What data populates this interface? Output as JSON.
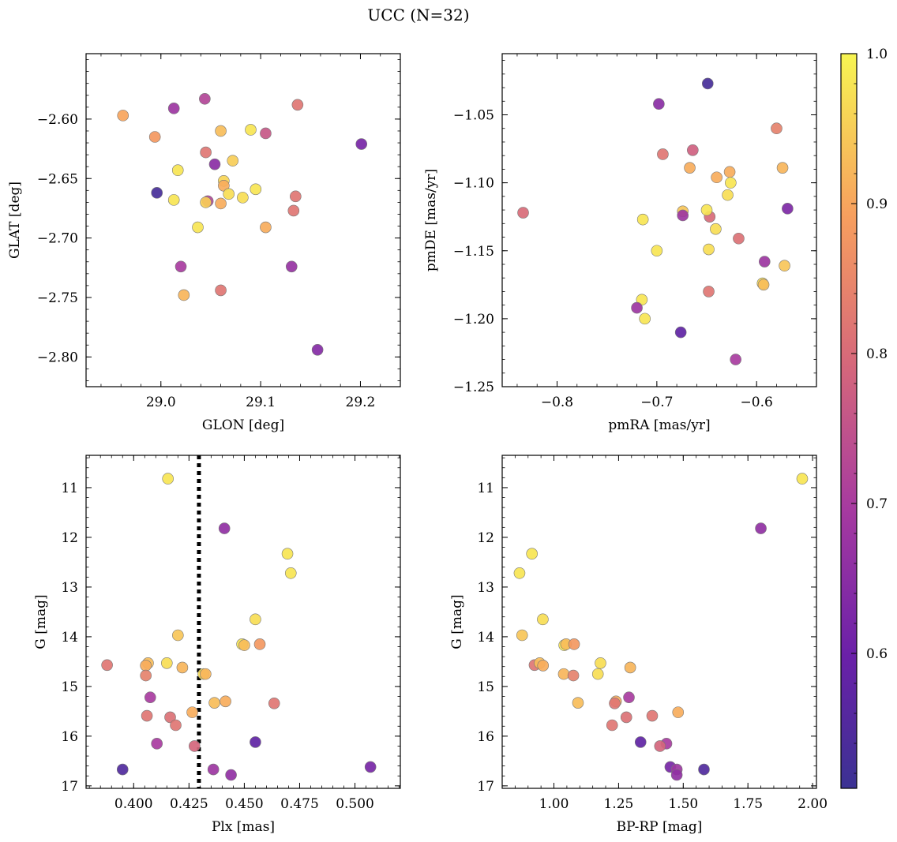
{
  "title": "UCC (N=32)",
  "colorbar": {
    "min": 0.51,
    "max": 1.0,
    "ticks": [
      0.6,
      0.7,
      0.8,
      0.9,
      1.0
    ],
    "tick_labels": [
      "0.6",
      "0.7",
      "0.8",
      "0.9",
      "1.0"
    ],
    "colormap": "plasma"
  },
  "chart_data": [
    {
      "type": "scatter",
      "xlabel": "GLON [deg]",
      "ylabel": "GLAT [deg]",
      "xlim": [
        28.925,
        29.24
      ],
      "ylim": [
        -2.825,
        -2.545
      ],
      "y_inverted": false,
      "xticks": [
        29.0,
        29.1,
        29.2
      ],
      "xtick_labels": [
        "29.0",
        "29.1",
        "29.2"
      ],
      "yticks": [
        -2.6,
        -2.65,
        -2.7,
        -2.75,
        -2.8
      ],
      "ytick_labels": [
        "−2.60",
        "−2.65",
        "−2.70",
        "−2.75",
        "−2.80"
      ],
      "points": [
        {
          "x": 28.962,
          "y": -2.597,
          "c": 0.9
        },
        {
          "x": 29.013,
          "y": -2.591,
          "c": 0.68
        },
        {
          "x": 29.044,
          "y": -2.583,
          "c": 0.72
        },
        {
          "x": 29.137,
          "y": -2.588,
          "c": 0.82
        },
        {
          "x": 28.994,
          "y": -2.615,
          "c": 0.88
        },
        {
          "x": 29.06,
          "y": -2.61,
          "c": 0.93
        },
        {
          "x": 29.09,
          "y": -2.609,
          "c": 0.98
        },
        {
          "x": 29.105,
          "y": -2.612,
          "c": 0.76
        },
        {
          "x": 29.201,
          "y": -2.621,
          "c": 0.62
        },
        {
          "x": 29.045,
          "y": -2.628,
          "c": 0.82
        },
        {
          "x": 29.072,
          "y": -2.635,
          "c": 0.95
        },
        {
          "x": 29.054,
          "y": -2.638,
          "c": 0.65
        },
        {
          "x": 29.017,
          "y": -2.643,
          "c": 0.98
        },
        {
          "x": 29.063,
          "y": -2.652,
          "c": 0.96
        },
        {
          "x": 29.063,
          "y": -2.656,
          "c": 0.91
        },
        {
          "x": 29.095,
          "y": -2.659,
          "c": 0.98
        },
        {
          "x": 28.996,
          "y": -2.662,
          "c": 0.53
        },
        {
          "x": 29.068,
          "y": -2.663,
          "c": 0.97
        },
        {
          "x": 29.082,
          "y": -2.666,
          "c": 0.97
        },
        {
          "x": 29.135,
          "y": -2.665,
          "c": 0.82
        },
        {
          "x": 29.013,
          "y": -2.668,
          "c": 0.98
        },
        {
          "x": 29.047,
          "y": -2.669,
          "c": 0.72
        },
        {
          "x": 29.045,
          "y": -2.67,
          "c": 0.95
        },
        {
          "x": 29.06,
          "y": -2.671,
          "c": 0.91
        },
        {
          "x": 29.133,
          "y": -2.677,
          "c": 0.82
        },
        {
          "x": 29.037,
          "y": -2.691,
          "c": 0.98
        },
        {
          "x": 29.105,
          "y": -2.691,
          "c": 0.91
        },
        {
          "x": 29.02,
          "y": -2.724,
          "c": 0.7
        },
        {
          "x": 29.131,
          "y": -2.724,
          "c": 0.67
        },
        {
          "x": 29.023,
          "y": -2.748,
          "c": 0.92
        },
        {
          "x": 29.06,
          "y": -2.744,
          "c": 0.82
        },
        {
          "x": 29.157,
          "y": -2.794,
          "c": 0.64
        }
      ]
    },
    {
      "type": "scatter",
      "xlabel": "pmRA [mas/yr]",
      "ylabel": "pmDE [mas/yr]",
      "xlim": [
        -0.855,
        -0.54
      ],
      "ylim": [
        -1.25,
        -1.005
      ],
      "y_inverted": false,
      "xticks": [
        -0.8,
        -0.7,
        -0.6
      ],
      "xtick_labels": [
        "−0.8",
        "−0.7",
        "−0.6"
      ],
      "yticks": [
        -1.05,
        -1.1,
        -1.15,
        -1.2,
        -1.25
      ],
      "ytick_labels": [
        "−1.05",
        "−1.10",
        "−1.15",
        "−1.20",
        "−1.25"
      ],
      "points": [
        {
          "x": -0.649,
          "y": -1.027,
          "c": 0.53
        },
        {
          "x": -0.698,
          "y": -1.042,
          "c": 0.65
        },
        {
          "x": -0.58,
          "y": -1.06,
          "c": 0.84
        },
        {
          "x": -0.664,
          "y": -1.076,
          "c": 0.78
        },
        {
          "x": -0.694,
          "y": -1.079,
          "c": 0.82
        },
        {
          "x": -0.667,
          "y": -1.089,
          "c": 0.91
        },
        {
          "x": -0.574,
          "y": -1.089,
          "c": 0.92
        },
        {
          "x": -0.627,
          "y": -1.092,
          "c": 0.91
        },
        {
          "x": -0.64,
          "y": -1.096,
          "c": 0.91
        },
        {
          "x": -0.626,
          "y": -1.1,
          "c": 0.98
        },
        {
          "x": -0.629,
          "y": -1.109,
          "c": 0.97
        },
        {
          "x": -0.569,
          "y": -1.119,
          "c": 0.63
        },
        {
          "x": -0.674,
          "y": -1.121,
          "c": 0.94
        },
        {
          "x": -0.674,
          "y": -1.124,
          "c": 0.68
        },
        {
          "x": -0.647,
          "y": -1.125,
          "c": 0.8
        },
        {
          "x": -0.834,
          "y": -1.122,
          "c": 0.8
        },
        {
          "x": -0.714,
          "y": -1.127,
          "c": 0.98
        },
        {
          "x": -0.641,
          "y": -1.134,
          "c": 0.97
        },
        {
          "x": -0.618,
          "y": -1.141,
          "c": 0.81
        },
        {
          "x": -0.648,
          "y": -1.149,
          "c": 0.97
        },
        {
          "x": -0.7,
          "y": -1.15,
          "c": 0.98
        },
        {
          "x": -0.592,
          "y": -1.158,
          "c": 0.68
        },
        {
          "x": -0.572,
          "y": -1.161,
          "c": 0.94
        },
        {
          "x": -0.594,
          "y": -1.174,
          "c": 0.97
        },
        {
          "x": -0.593,
          "y": -1.175,
          "c": 0.93
        },
        {
          "x": -0.648,
          "y": -1.18,
          "c": 0.82
        },
        {
          "x": -0.715,
          "y": -1.186,
          "c": 0.98
        },
        {
          "x": -0.72,
          "y": -1.192,
          "c": 0.68
        },
        {
          "x": -0.712,
          "y": -1.2,
          "c": 0.98
        },
        {
          "x": -0.676,
          "y": -1.21,
          "c": 0.58
        },
        {
          "x": -0.621,
          "y": -1.23,
          "c": 0.7
        },
        {
          "x": -0.65,
          "y": -1.12,
          "c": 0.98
        }
      ]
    },
    {
      "type": "scatter",
      "xlabel": "Plx [mas]",
      "ylabel": "G [mag]",
      "xlim": [
        0.3785,
        0.5205
      ],
      "ylim": [
        17.05,
        10.35
      ],
      "y_inverted": true,
      "xticks": [
        0.4,
        0.425,
        0.45,
        0.475,
        0.5
      ],
      "xtick_labels": [
        "0.400",
        "0.425",
        "0.450",
        "0.475",
        "0.500"
      ],
      "yticks": [
        11,
        12,
        13,
        14,
        15,
        16,
        17
      ],
      "ytick_labels": [
        "11",
        "12",
        "13",
        "14",
        "15",
        "16",
        "17"
      ],
      "vline": {
        "x": 0.4295,
        "style": "dotted"
      },
      "points": [
        {
          "x": 0.4155,
          "y": 10.82,
          "c": 0.98
        },
        {
          "x": 0.441,
          "y": 11.82,
          "c": 0.66
        },
        {
          "x": 0.4695,
          "y": 12.33,
          "c": 0.98
        },
        {
          "x": 0.471,
          "y": 12.72,
          "c": 0.98
        },
        {
          "x": 0.455,
          "y": 13.65,
          "c": 0.97
        },
        {
          "x": 0.42,
          "y": 13.97,
          "c": 0.94
        },
        {
          "x": 0.449,
          "y": 14.15,
          "c": 0.98
        },
        {
          "x": 0.45,
          "y": 14.17,
          "c": 0.93
        },
        {
          "x": 0.457,
          "y": 14.15,
          "c": 0.88
        },
        {
          "x": 0.388,
          "y": 14.57,
          "c": 0.82
        },
        {
          "x": 0.4065,
          "y": 14.53,
          "c": 0.93
        },
        {
          "x": 0.415,
          "y": 14.53,
          "c": 0.97
        },
        {
          "x": 0.4055,
          "y": 14.58,
          "c": 0.91
        },
        {
          "x": 0.422,
          "y": 14.62,
          "c": 0.92
        },
        {
          "x": 0.4315,
          "y": 14.75,
          "c": 0.97
        },
        {
          "x": 0.4325,
          "y": 14.75,
          "c": 0.92
        },
        {
          "x": 0.4055,
          "y": 14.78,
          "c": 0.84
        },
        {
          "x": 0.4075,
          "y": 15.22,
          "c": 0.7
        },
        {
          "x": 0.4365,
          "y": 15.33,
          "c": 0.93
        },
        {
          "x": 0.4415,
          "y": 15.3,
          "c": 0.91
        },
        {
          "x": 0.4635,
          "y": 15.34,
          "c": 0.82
        },
        {
          "x": 0.4265,
          "y": 15.52,
          "c": 0.91
        },
        {
          "x": 0.406,
          "y": 15.59,
          "c": 0.82
        },
        {
          "x": 0.4165,
          "y": 15.62,
          "c": 0.81
        },
        {
          "x": 0.419,
          "y": 15.78,
          "c": 0.82
        },
        {
          "x": 0.4105,
          "y": 16.15,
          "c": 0.7
        },
        {
          "x": 0.455,
          "y": 16.12,
          "c": 0.58
        },
        {
          "x": 0.4275,
          "y": 16.2,
          "c": 0.79
        },
        {
          "x": 0.395,
          "y": 16.67,
          "c": 0.55
        },
        {
          "x": 0.436,
          "y": 16.67,
          "c": 0.68
        },
        {
          "x": 0.444,
          "y": 16.78,
          "c": 0.66
        },
        {
          "x": 0.507,
          "y": 16.62,
          "c": 0.62
        }
      ]
    },
    {
      "type": "scatter",
      "xlabel": "BP-RP [mag]",
      "ylabel": "G [mag]",
      "xlim": [
        0.8,
        2.015
      ],
      "ylim": [
        17.05,
        10.35
      ],
      "y_inverted": true,
      "xticks": [
        1.0,
        1.25,
        1.5,
        1.75,
        2.0
      ],
      "xtick_labels": [
        "1.00",
        "1.25",
        "1.50",
        "1.75",
        "2.00"
      ],
      "yticks": [
        11,
        12,
        13,
        14,
        15,
        16,
        17
      ],
      "ytick_labels": [
        "11",
        "12",
        "13",
        "14",
        "15",
        "16",
        "17"
      ],
      "points": [
        {
          "x": 1.96,
          "y": 10.82,
          "c": 0.98
        },
        {
          "x": 1.8,
          "y": 11.82,
          "c": 0.66
        },
        {
          "x": 0.915,
          "y": 12.33,
          "c": 0.98
        },
        {
          "x": 0.867,
          "y": 12.72,
          "c": 0.98
        },
        {
          "x": 0.957,
          "y": 13.65,
          "c": 0.97
        },
        {
          "x": 0.877,
          "y": 13.97,
          "c": 0.94
        },
        {
          "x": 1.04,
          "y": 14.17,
          "c": 0.98
        },
        {
          "x": 1.047,
          "y": 14.15,
          "c": 0.93
        },
        {
          "x": 1.078,
          "y": 14.15,
          "c": 0.88
        },
        {
          "x": 0.925,
          "y": 14.57,
          "c": 0.82
        },
        {
          "x": 0.945,
          "y": 14.53,
          "c": 0.93
        },
        {
          "x": 0.958,
          "y": 14.58,
          "c": 0.91
        },
        {
          "x": 1.18,
          "y": 14.53,
          "c": 0.97
        },
        {
          "x": 1.295,
          "y": 14.62,
          "c": 0.92
        },
        {
          "x": 1.038,
          "y": 14.75,
          "c": 0.92
        },
        {
          "x": 1.075,
          "y": 14.78,
          "c": 0.84
        },
        {
          "x": 1.17,
          "y": 14.75,
          "c": 0.97
        },
        {
          "x": 1.29,
          "y": 15.22,
          "c": 0.7
        },
        {
          "x": 1.093,
          "y": 15.33,
          "c": 0.93
        },
        {
          "x": 1.24,
          "y": 15.3,
          "c": 0.91
        },
        {
          "x": 1.235,
          "y": 15.34,
          "c": 0.82
        },
        {
          "x": 1.48,
          "y": 15.52,
          "c": 0.91
        },
        {
          "x": 1.38,
          "y": 15.59,
          "c": 0.82
        },
        {
          "x": 1.28,
          "y": 15.62,
          "c": 0.81
        },
        {
          "x": 1.225,
          "y": 15.78,
          "c": 0.82
        },
        {
          "x": 1.335,
          "y": 16.12,
          "c": 0.58
        },
        {
          "x": 1.435,
          "y": 16.15,
          "c": 0.7
        },
        {
          "x": 1.41,
          "y": 16.2,
          "c": 0.79
        },
        {
          "x": 1.45,
          "y": 16.62,
          "c": 0.62
        },
        {
          "x": 1.58,
          "y": 16.67,
          "c": 0.55
        },
        {
          "x": 1.475,
          "y": 16.67,
          "c": 0.68
        },
        {
          "x": 1.475,
          "y": 16.78,
          "c": 0.66
        }
      ]
    }
  ]
}
